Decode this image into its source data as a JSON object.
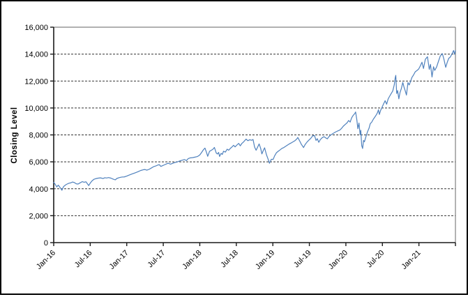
{
  "chart_data": {
    "type": "line",
    "title": "",
    "xlabel": "",
    "ylabel": "Closing Level",
    "ylim": [
      0,
      16000
    ],
    "xlim_months": [
      0,
      66
    ],
    "grid": "horizontal-dashed",
    "legend_position": "none",
    "y_ticks": [
      {
        "value": 0,
        "label": "0"
      },
      {
        "value": 2000,
        "label": "2,000"
      },
      {
        "value": 4000,
        "label": "4,000"
      },
      {
        "value": 6000,
        "label": "6,000"
      },
      {
        "value": 8000,
        "label": "8,000"
      },
      {
        "value": 10000,
        "label": "10,000"
      },
      {
        "value": 12000,
        "label": "12,000"
      },
      {
        "value": 14000,
        "label": "14,000"
      },
      {
        "value": 16000,
        "label": "16,000"
      }
    ],
    "x_ticks": [
      {
        "t": 0,
        "label": "Jan-16"
      },
      {
        "t": 6,
        "label": "Jul-16"
      },
      {
        "t": 12,
        "label": "Jan-17"
      },
      {
        "t": 18,
        "label": "Jul-17"
      },
      {
        "t": 24,
        "label": "Jan-18"
      },
      {
        "t": 30,
        "label": "Jul-18"
      },
      {
        "t": 36,
        "label": "Jan-19"
      },
      {
        "t": 42,
        "label": "Jul-19"
      },
      {
        "t": 48,
        "label": "Jan-20"
      },
      {
        "t": 54,
        "label": "Jul-20"
      },
      {
        "t": 60,
        "label": "Jan-21"
      },
      {
        "t": 66,
        "label": ""
      }
    ],
    "colors": {
      "line": "#4F81BD",
      "axis": "#1a1a1a",
      "gridline": "#333333",
      "plot_border": "#808080",
      "background": "#FFFFFF",
      "outer_border": "#000000"
    },
    "series": [
      {
        "name": "Closing Level",
        "points": [
          [
            0.0,
            4480
          ],
          [
            0.25,
            4330
          ],
          [
            0.5,
            4140
          ],
          [
            0.75,
            4270
          ],
          [
            1.1,
            4060
          ],
          [
            1.35,
            3890
          ],
          [
            1.6,
            4150
          ],
          [
            1.9,
            4270
          ],
          [
            2.2,
            4350
          ],
          [
            2.5,
            4410
          ],
          [
            2.8,
            4440
          ],
          [
            3.1,
            4500
          ],
          [
            3.4,
            4460
          ],
          [
            3.7,
            4370
          ],
          [
            4.0,
            4350
          ],
          [
            4.3,
            4430
          ],
          [
            4.7,
            4530
          ],
          [
            5.0,
            4480
          ],
          [
            5.3,
            4520
          ],
          [
            5.75,
            4240
          ],
          [
            6.0,
            4420
          ],
          [
            6.3,
            4590
          ],
          [
            6.6,
            4700
          ],
          [
            6.9,
            4750
          ],
          [
            7.3,
            4790
          ],
          [
            7.7,
            4810
          ],
          [
            8.1,
            4760
          ],
          [
            8.4,
            4820
          ],
          [
            8.7,
            4800
          ],
          [
            9.0,
            4830
          ],
          [
            9.4,
            4790
          ],
          [
            9.7,
            4730
          ],
          [
            10.1,
            4660
          ],
          [
            10.4,
            4770
          ],
          [
            10.8,
            4830
          ],
          [
            11.2,
            4870
          ],
          [
            11.6,
            4880
          ],
          [
            12.0,
            4940
          ],
          [
            12.3,
            5000
          ],
          [
            12.7,
            5070
          ],
          [
            13.0,
            5120
          ],
          [
            13.3,
            5170
          ],
          [
            13.7,
            5240
          ],
          [
            14.0,
            5300
          ],
          [
            14.3,
            5360
          ],
          [
            14.7,
            5410
          ],
          [
            15.0,
            5430
          ],
          [
            15.3,
            5380
          ],
          [
            15.7,
            5450
          ],
          [
            16.0,
            5530
          ],
          [
            16.4,
            5640
          ],
          [
            16.8,
            5700
          ],
          [
            17.1,
            5760
          ],
          [
            17.35,
            5790
          ],
          [
            17.6,
            5660
          ],
          [
            17.9,
            5720
          ],
          [
            18.2,
            5780
          ],
          [
            18.5,
            5840
          ],
          [
            18.8,
            5900
          ],
          [
            19.2,
            5830
          ],
          [
            19.5,
            5880
          ],
          [
            19.8,
            5930
          ],
          [
            20.2,
            5980
          ],
          [
            20.5,
            6030
          ],
          [
            20.8,
            6080
          ],
          [
            21.1,
            6120
          ],
          [
            21.5,
            6170
          ],
          [
            21.8,
            6090
          ],
          [
            22.1,
            6240
          ],
          [
            22.4,
            6290
          ],
          [
            22.8,
            6310
          ],
          [
            23.2,
            6350
          ],
          [
            23.6,
            6390
          ],
          [
            24.0,
            6510
          ],
          [
            24.3,
            6700
          ],
          [
            24.6,
            6900
          ],
          [
            24.85,
            7020
          ],
          [
            25.1,
            6700
          ],
          [
            25.3,
            6410
          ],
          [
            25.6,
            6780
          ],
          [
            25.9,
            6860
          ],
          [
            26.15,
            6930
          ],
          [
            26.4,
            7070
          ],
          [
            26.7,
            6660
          ],
          [
            26.9,
            6580
          ],
          [
            27.1,
            6700
          ],
          [
            27.25,
            6400
          ],
          [
            27.5,
            6630
          ],
          [
            27.7,
            6550
          ],
          [
            27.9,
            6790
          ],
          [
            28.2,
            6720
          ],
          [
            28.5,
            6940
          ],
          [
            28.75,
            6860
          ],
          [
            29.0,
            6990
          ],
          [
            29.3,
            7110
          ],
          [
            29.55,
            7230
          ],
          [
            29.8,
            7110
          ],
          [
            30.1,
            7250
          ],
          [
            30.4,
            7370
          ],
          [
            30.65,
            7190
          ],
          [
            30.9,
            7360
          ],
          [
            31.2,
            7480
          ],
          [
            31.6,
            7690
          ],
          [
            31.9,
            7570
          ],
          [
            32.2,
            7640
          ],
          [
            32.5,
            7600
          ],
          [
            32.75,
            7660
          ],
          [
            33.0,
            7100
          ],
          [
            33.25,
            6860
          ],
          [
            33.5,
            7090
          ],
          [
            33.75,
            7330
          ],
          [
            34.0,
            7000
          ],
          [
            34.2,
            6590
          ],
          [
            34.45,
            6860
          ],
          [
            34.65,
            7040
          ],
          [
            34.95,
            6530
          ],
          [
            35.2,
            6230
          ],
          [
            35.45,
            5895
          ],
          [
            35.75,
            6190
          ],
          [
            36.05,
            6180
          ],
          [
            36.3,
            6450
          ],
          [
            36.6,
            6680
          ],
          [
            36.9,
            6790
          ],
          [
            37.2,
            6890
          ],
          [
            37.5,
            7000
          ],
          [
            37.8,
            7060
          ],
          [
            38.1,
            7150
          ],
          [
            38.4,
            7240
          ],
          [
            38.7,
            7330
          ],
          [
            39.0,
            7400
          ],
          [
            39.3,
            7480
          ],
          [
            39.6,
            7560
          ],
          [
            39.9,
            7680
          ],
          [
            40.1,
            7810
          ],
          [
            40.4,
            7560
          ],
          [
            40.7,
            7290
          ],
          [
            41.05,
            7060
          ],
          [
            41.3,
            7280
          ],
          [
            41.6,
            7460
          ],
          [
            41.9,
            7600
          ],
          [
            42.2,
            7730
          ],
          [
            42.55,
            7930
          ],
          [
            42.85,
            7950
          ],
          [
            43.1,
            7590
          ],
          [
            43.3,
            7720
          ],
          [
            43.55,
            7450
          ],
          [
            43.8,
            7650
          ],
          [
            44.1,
            7790
          ],
          [
            44.4,
            7870
          ],
          [
            44.65,
            7790
          ],
          [
            44.95,
            7710
          ],
          [
            45.2,
            7860
          ],
          [
            45.5,
            7990
          ],
          [
            45.8,
            8080
          ],
          [
            46.1,
            8160
          ],
          [
            46.4,
            8240
          ],
          [
            46.7,
            8300
          ],
          [
            47.0,
            8360
          ],
          [
            47.3,
            8490
          ],
          [
            47.6,
            8660
          ],
          [
            47.9,
            8780
          ],
          [
            48.2,
            8900
          ],
          [
            48.45,
            9070
          ],
          [
            48.7,
            8950
          ],
          [
            48.95,
            9270
          ],
          [
            49.2,
            9450
          ],
          [
            49.45,
            9580
          ],
          [
            49.6,
            9700
          ],
          [
            49.8,
            9120
          ],
          [
            49.97,
            8460
          ],
          [
            50.15,
            8880
          ],
          [
            50.35,
            8010
          ],
          [
            50.45,
            8340
          ],
          [
            50.6,
            7210
          ],
          [
            50.75,
            6994
          ],
          [
            50.9,
            7590
          ],
          [
            51.05,
            7490
          ],
          [
            51.3,
            7880
          ],
          [
            51.55,
            8230
          ],
          [
            51.8,
            8490
          ],
          [
            52.0,
            8830
          ],
          [
            52.25,
            8950
          ],
          [
            52.5,
            9160
          ],
          [
            52.75,
            9320
          ],
          [
            53.0,
            9490
          ],
          [
            53.2,
            9660
          ],
          [
            53.35,
            9870
          ],
          [
            53.5,
            9520
          ],
          [
            53.7,
            9810
          ],
          [
            53.95,
            10060
          ],
          [
            54.2,
            10310
          ],
          [
            54.45,
            10540
          ],
          [
            54.7,
            10280
          ],
          [
            54.95,
            10680
          ],
          [
            55.2,
            10880
          ],
          [
            55.45,
            11080
          ],
          [
            55.7,
            11260
          ],
          [
            55.95,
            11720
          ],
          [
            56.1,
            12230
          ],
          [
            56.2,
            12420
          ],
          [
            56.35,
            11070
          ],
          [
            56.5,
            11290
          ],
          [
            56.7,
            10680
          ],
          [
            56.9,
            11160
          ],
          [
            57.1,
            11420
          ],
          [
            57.35,
            11900
          ],
          [
            57.55,
            11550
          ],
          [
            57.75,
            11280
          ],
          [
            57.95,
            10960
          ],
          [
            58.2,
            11890
          ],
          [
            58.4,
            11710
          ],
          [
            58.6,
            11940
          ],
          [
            58.85,
            12270
          ],
          [
            59.1,
            12440
          ],
          [
            59.4,
            12690
          ],
          [
            59.65,
            12770
          ],
          [
            59.95,
            12888
          ],
          [
            60.2,
            13100
          ],
          [
            60.5,
            13400
          ],
          [
            60.75,
            12930
          ],
          [
            61.05,
            13610
          ],
          [
            61.4,
            13807
          ],
          [
            61.7,
            12870
          ],
          [
            61.9,
            13240
          ],
          [
            62.15,
            12300
          ],
          [
            62.4,
            13060
          ],
          [
            62.6,
            12790
          ],
          [
            62.9,
            13040
          ],
          [
            63.2,
            13450
          ],
          [
            63.5,
            13850
          ],
          [
            63.85,
            14040
          ],
          [
            64.1,
            13630
          ],
          [
            64.4,
            13020
          ],
          [
            64.65,
            13390
          ],
          [
            64.9,
            13690
          ],
          [
            65.15,
            13780
          ],
          [
            65.45,
            14030
          ],
          [
            65.7,
            14270
          ],
          [
            65.85,
            13990
          ],
          [
            66.0,
            14260
          ]
        ]
      }
    ]
  }
}
